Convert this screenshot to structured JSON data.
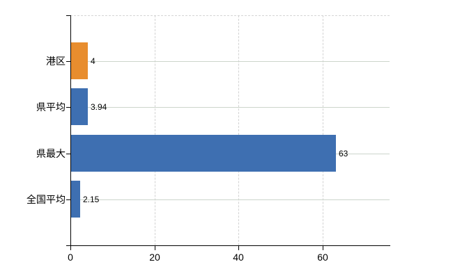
{
  "chart_data": {
    "type": "bar",
    "orientation": "horizontal",
    "categories": [
      "港区",
      "県平均",
      "県最大",
      "全国平均"
    ],
    "values": [
      4,
      3.94,
      63,
      2.15
    ],
    "value_labels": [
      "4",
      "3.94",
      "63",
      "2.15"
    ],
    "bar_colors": [
      "#e88d2e",
      "#3e6fb1",
      "#3e6fb1",
      "#3e6fb1"
    ],
    "x_axis": {
      "ticks": [
        0,
        20,
        40,
        60
      ],
      "tick_labels": [
        "0",
        "20",
        "40",
        "60"
      ],
      "min": 0,
      "max": 76
    },
    "legend": "none",
    "grid": {
      "horizontal": "solid",
      "vertical": "dashed",
      "top_border": "dashed"
    }
  },
  "colors": {
    "bar_blue": "#3e6fb1",
    "bar_orange": "#e88d2e",
    "axis": "#000000",
    "grid_horizontal": "#ccd5cb",
    "grid_vertical": "#d2d2d2",
    "plot_top_border": "#d5d5d5",
    "text": "#000000",
    "background": "#ffffff"
  }
}
